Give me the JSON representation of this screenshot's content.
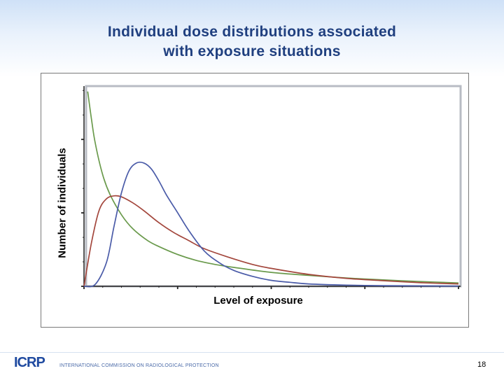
{
  "slide": {
    "title_line1": "Individual dose distributions associated",
    "title_line2": "with exposure situations",
    "page_number": "18"
  },
  "footer": {
    "logo_text": "ICRP",
    "org_name": "INTERNATIONAL COMMISSION ON RADIOLOGICAL PROTECTION"
  },
  "chart_data": {
    "type": "line",
    "title": "",
    "xlabel": "Level of exposure",
    "ylabel": "Number of individuals",
    "xlim": [
      0,
      1
    ],
    "ylim": [
      0,
      1
    ],
    "grid": false,
    "legend": "none",
    "series": [
      {
        "color": "#6a9a4c",
        "x": [
          0.01,
          0.02,
          0.03,
          0.05,
          0.07,
          0.1,
          0.13,
          0.17,
          0.2,
          0.25,
          0.3,
          0.35,
          0.4,
          0.5,
          0.6,
          0.7,
          0.8,
          0.9,
          1.0
        ],
        "y": [
          0.98,
          0.84,
          0.72,
          0.56,
          0.46,
          0.36,
          0.29,
          0.23,
          0.2,
          0.16,
          0.13,
          0.11,
          0.095,
          0.07,
          0.055,
          0.042,
          0.032,
          0.024,
          0.017
        ]
      },
      {
        "color": "#a3463c",
        "x": [
          0.0,
          0.02,
          0.04,
          0.06,
          0.08,
          0.1,
          0.13,
          0.16,
          0.2,
          0.24,
          0.28,
          0.32,
          0.38,
          0.45,
          0.5,
          0.6,
          0.7,
          0.8,
          0.9,
          1.0
        ],
        "y": [
          0.0,
          0.22,
          0.38,
          0.44,
          0.455,
          0.45,
          0.42,
          0.38,
          0.32,
          0.27,
          0.23,
          0.19,
          0.15,
          0.11,
          0.09,
          0.06,
          0.04,
          0.028,
          0.018,
          0.012
        ]
      },
      {
        "color": "#4a5ba8",
        "x": [
          0.0,
          0.03,
          0.06,
          0.08,
          0.1,
          0.12,
          0.14,
          0.16,
          0.18,
          0.2,
          0.22,
          0.25,
          0.28,
          0.32,
          0.36,
          0.4,
          0.45,
          0.5,
          0.55,
          0.6,
          0.7,
          0.8,
          0.9,
          1.0
        ],
        "y": [
          0.0,
          0.01,
          0.12,
          0.3,
          0.47,
          0.58,
          0.62,
          0.62,
          0.59,
          0.53,
          0.46,
          0.37,
          0.28,
          0.18,
          0.12,
          0.08,
          0.05,
          0.03,
          0.02,
          0.012,
          0.006,
          0.003,
          0.002,
          0.001
        ]
      }
    ]
  }
}
